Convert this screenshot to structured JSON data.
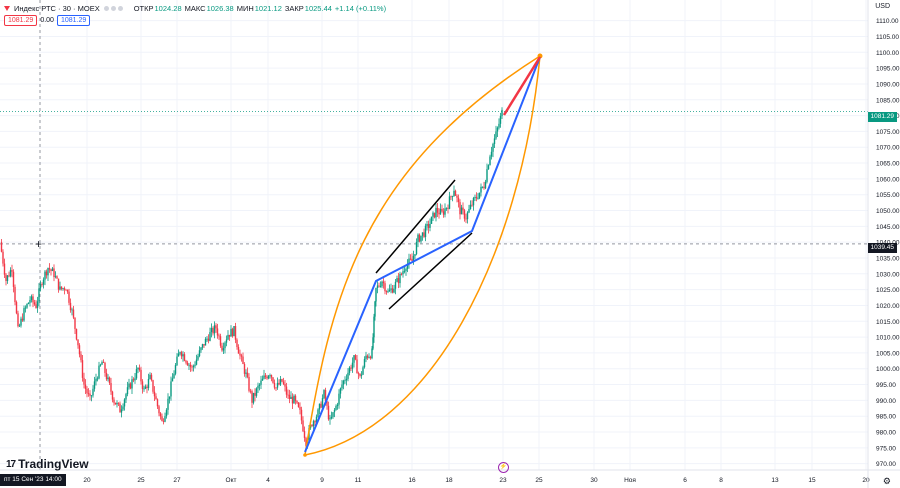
{
  "header": {
    "title": "Индекс РТС · 30 · MOEX",
    "open_label": "ОТКР",
    "open_value": "1024.28",
    "high_label": "МАКС",
    "high_value": "1026.38",
    "low_label": "МИН",
    "low_value": "1021.12",
    "close_label": "ЗАКР",
    "close_value": "1025.44",
    "change": "+1.14 (+0.11%)"
  },
  "pills": {
    "sell": "1081.29",
    "spread": "0.00",
    "buy": "1081.29"
  },
  "currency": "USD",
  "last_price_label": "1081.29",
  "crosshair_price_label": "1039.45",
  "crosshair_time_label": "пт 15 Сен '23   14:00",
  "logo": {
    "mark": "17",
    "text": "TradingView"
  },
  "event_icon": "lightning-icon",
  "colors": {
    "up": "#089981",
    "down": "#f23645",
    "arc": "#ff9800",
    "line_blue": "#2962ff",
    "line_red": "#f23645"
  },
  "chart_data": {
    "type": "candlestick",
    "symbol": "Индекс РТС",
    "y_ticks": [
      970,
      975,
      980,
      985,
      990,
      995,
      1000,
      1005,
      1010,
      1015,
      1020,
      1025,
      1030,
      1035,
      1040,
      1045,
      1050,
      1055,
      1060,
      1065,
      1070,
      1075,
      1080,
      1085,
      1090,
      1095,
      1100,
      1105,
      1110
    ],
    "ylim": [
      968,
      1114
    ],
    "x_ticks": [
      "20",
      "25",
      "27",
      "Окт",
      "4",
      "9",
      "11",
      "16",
      "18",
      "23",
      "25",
      "30",
      "Ноя",
      "6",
      "8",
      "13",
      "15",
      "20"
    ],
    "grid": true,
    "price_path": [
      [
        0,
        1040
      ],
      [
        6,
        1028
      ],
      [
        12,
        1032
      ],
      [
        18,
        1012
      ],
      [
        24,
        1018
      ],
      [
        30,
        1022
      ],
      [
        36,
        1020
      ],
      [
        42,
        1028
      ],
      [
        48,
        1032
      ],
      [
        54,
        1030
      ],
      [
        60,
        1025
      ],
      [
        66,
        1026
      ],
      [
        72,
        1018
      ],
      [
        78,
        1008
      ],
      [
        84,
        995
      ],
      [
        90,
        990
      ],
      [
        96,
        997
      ],
      [
        102,
        1002
      ],
      [
        108,
        996
      ],
      [
        114,
        990
      ],
      [
        120,
        987
      ],
      [
        126,
        992
      ],
      [
        132,
        996
      ],
      [
        138,
        1000
      ],
      [
        144,
        993
      ],
      [
        150,
        997
      ],
      [
        156,
        990
      ],
      [
        162,
        983
      ],
      [
        168,
        990
      ],
      [
        174,
        999
      ],
      [
        180,
        1006
      ],
      [
        186,
        1003
      ],
      [
        192,
        1000
      ],
      [
        198,
        1004
      ],
      [
        204,
        1008
      ],
      [
        210,
        1011
      ],
      [
        216,
        1013
      ],
      [
        222,
        1007
      ],
      [
        228,
        1011
      ],
      [
        234,
        1012
      ],
      [
        240,
        1004
      ],
      [
        246,
        998
      ],
      [
        252,
        990
      ],
      [
        258,
        994
      ],
      [
        264,
        997
      ],
      [
        270,
        999
      ],
      [
        276,
        994
      ],
      [
        282,
        996
      ],
      [
        288,
        991
      ],
      [
        294,
        990
      ],
      [
        300,
        986
      ],
      [
        306,
        977
      ],
      [
        312,
        983
      ],
      [
        318,
        986
      ],
      [
        324,
        992
      ],
      [
        330,
        983
      ],
      [
        336,
        988
      ],
      [
        342,
        995
      ],
      [
        348,
        999
      ],
      [
        354,
        1003
      ],
      [
        360,
        997
      ],
      [
        366,
        1004
      ],
      [
        372,
        1005
      ],
      [
        376,
        1025
      ],
      [
        382,
        1028
      ],
      [
        388,
        1024
      ],
      [
        394,
        1026
      ],
      [
        400,
        1029
      ],
      [
        406,
        1033
      ],
      [
        412,
        1034
      ],
      [
        418,
        1041
      ],
      [
        424,
        1043
      ],
      [
        430,
        1046
      ],
      [
        436,
        1050
      ],
      [
        442,
        1049
      ],
      [
        448,
        1052
      ],
      [
        454,
        1057
      ],
      [
        460,
        1050
      ],
      [
        466,
        1048
      ],
      [
        472,
        1052
      ],
      [
        478,
        1055
      ],
      [
        484,
        1058
      ],
      [
        490,
        1068
      ],
      [
        496,
        1074
      ],
      [
        502,
        1081
      ]
    ]
  }
}
